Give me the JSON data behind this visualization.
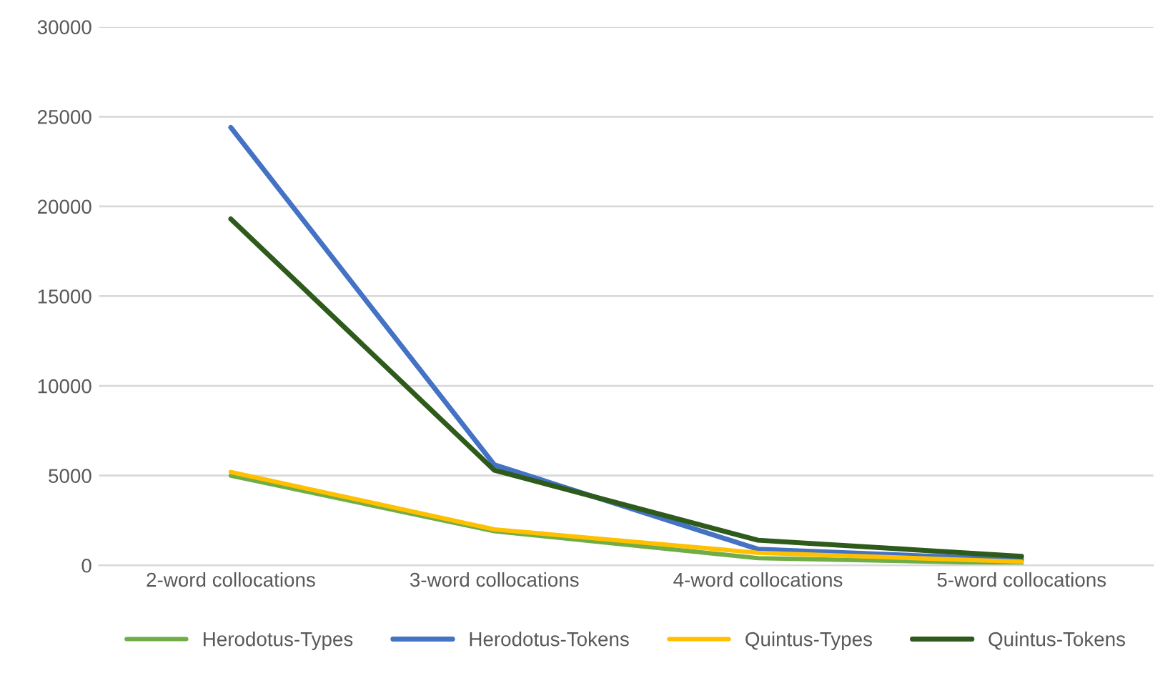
{
  "chart_data": {
    "type": "line",
    "categories": [
      "2-word collocations",
      "3-word collocations",
      "4-word collocations",
      "5-word collocations"
    ],
    "series": [
      {
        "name": "Herodotus-Types",
        "color": "#70ad47",
        "values": [
          5000,
          1900,
          400,
          100
        ]
      },
      {
        "name": "Herodotus-Tokens",
        "color": "#4472c4",
        "values": [
          24400,
          5600,
          900,
          300
        ]
      },
      {
        "name": "Quintus-Types",
        "color": "#ffc000",
        "values": [
          5200,
          2000,
          700,
          200
        ]
      },
      {
        "name": "Quintus-Tokens",
        "color": "#2e5a1c",
        "values": [
          19300,
          5300,
          1400,
          500
        ]
      }
    ],
    "ylim": [
      0,
      30000
    ],
    "yticks": [
      0,
      5000,
      10000,
      15000,
      20000,
      25000,
      30000
    ],
    "grid": "y",
    "legend": "bottom",
    "marker": "none",
    "line_style": "solid"
  }
}
